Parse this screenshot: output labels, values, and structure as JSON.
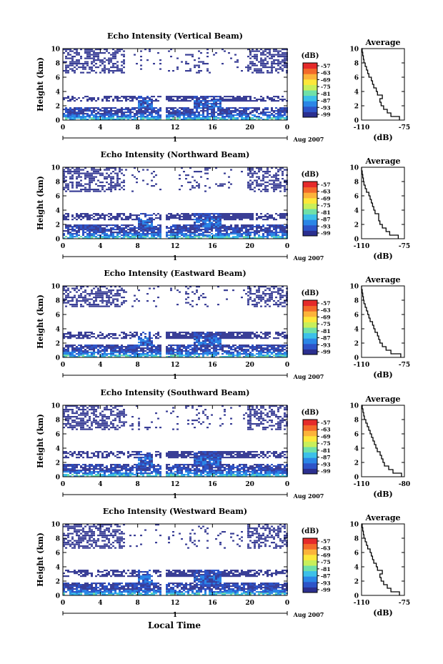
{
  "figure": {
    "xlabel": "Local Time",
    "date_label": "Aug 2007",
    "date_tick_label": "1",
    "colorbar_unit": "(dB)",
    "colorbar_ticks": [
      "-57",
      "-63",
      "-69",
      "-75",
      "-81",
      "-87",
      "-93",
      "-99"
    ],
    "colorbar_colors": [
      "#2b2f8f",
      "#2d54c8",
      "#2b86e6",
      "#3cc0e8",
      "#6fe0a8",
      "#c8ef5a",
      "#fde73a",
      "#fcb33a",
      "#f36a2a",
      "#e52a2a"
    ],
    "echo_color": "#3a3f96",
    "avg_title": "Average",
    "avg_xlabel": "(dB)",
    "avg_ylabel": "Height (km)"
  },
  "chart_data": [
    {
      "type": "heatmap",
      "title": "Echo Intensity (Vertical Beam)",
      "ylabel": "Height (km)",
      "xlabel": "Local Time",
      "x_ticks": [
        "0",
        "4",
        "8",
        "12",
        "16",
        "20",
        "0"
      ],
      "y_ticks": [
        "0",
        "2",
        "4",
        "6",
        "8",
        "10"
      ],
      "xlim": [
        0,
        24
      ],
      "ylim": [
        0,
        10
      ],
      "colorbar_range_db": [
        -99,
        -57
      ],
      "upper_layer_km": [
        6.5,
        10
      ],
      "mid_layer_km": [
        2.6,
        3.4
      ],
      "lower_layer_km": [
        0,
        1.6
      ],
      "strong_columns_hours": [
        [
          7.8,
          9.6
        ],
        [
          13.8,
          16.9
        ]
      ],
      "gap_hours": [
        10.4,
        11.0
      ],
      "average": {
        "title": "Average",
        "xlabel": "(dB)",
        "x_ticks": [
          "-110",
          "-75"
        ],
        "xlim": [
          -110,
          -75
        ],
        "y_ticks": [
          "0",
          "2",
          "4",
          "6",
          "8",
          "10"
        ],
        "profile_height_km": [
          0,
          0.5,
          1,
          1.5,
          2,
          2.5,
          3,
          3.5,
          4,
          4.5,
          5,
          5.5,
          6,
          6.5,
          7,
          7.5,
          8,
          8.5,
          9,
          9.5,
          10
        ],
        "profile_db": [
          -79,
          -86,
          -89,
          -92,
          -94,
          -95,
          -93,
          -97,
          -98,
          -100,
          -101,
          -102,
          -104,
          -105,
          -106,
          -107,
          -108,
          -108.5,
          -109,
          -109.5,
          -110
        ]
      }
    },
    {
      "type": "heatmap",
      "title": "Echo Intensity (Northward Beam)",
      "ylabel": "Height (km)",
      "xlabel": "Local Time",
      "x_ticks": [
        "0",
        "4",
        "8",
        "12",
        "16",
        "20",
        "0"
      ],
      "y_ticks": [
        "0",
        "2",
        "4",
        "6",
        "8",
        "10"
      ],
      "xlim": [
        0,
        24
      ],
      "ylim": [
        0,
        10
      ],
      "colorbar_range_db": [
        -99,
        -57
      ],
      "upper_layer_km": [
        6.5,
        10
      ],
      "mid_layer_km": [
        2.6,
        3.6
      ],
      "lower_layer_km": [
        0,
        1.8
      ],
      "strong_columns_hours": [
        [
          7.8,
          9.6
        ],
        [
          13.8,
          16.9
        ]
      ],
      "gap_hours": [
        10.4,
        11.0
      ],
      "average": {
        "title": "Average",
        "xlabel": "(dB)",
        "x_ticks": [
          "-110",
          "-75"
        ],
        "xlim": [
          -110,
          -75
        ],
        "y_ticks": [
          "0",
          "2",
          "4",
          "6",
          "8",
          "10"
        ],
        "profile_height_km": [
          0,
          0.5,
          1,
          1.5,
          2,
          2.5,
          3,
          3.5,
          4,
          4.5,
          5,
          5.5,
          6,
          6.5,
          7,
          7.5,
          8,
          8.5,
          9,
          9.5,
          10
        ],
        "profile_db": [
          -80,
          -87,
          -90,
          -93,
          -95,
          -96,
          -96,
          -99,
          -100,
          -101,
          -102,
          -103,
          -104,
          -106,
          -107,
          -108,
          -108.5,
          -109,
          -109.5,
          -110,
          -110
        ]
      }
    },
    {
      "type": "heatmap",
      "title": "Echo Intensity (Eastward Beam)",
      "ylabel": "Height (km)",
      "xlabel": "Local Time",
      "x_ticks": [
        "0",
        "4",
        "8",
        "12",
        "16",
        "20",
        "0"
      ],
      "y_ticks": [
        "0",
        "2",
        "4",
        "6",
        "8",
        "10"
      ],
      "xlim": [
        0,
        24
      ],
      "ylim": [
        0,
        10
      ],
      "colorbar_range_db": [
        -99,
        -57
      ],
      "upper_layer_km": [
        7,
        10
      ],
      "mid_layer_km": [
        2.6,
        3.6
      ],
      "lower_layer_km": [
        0,
        1.6
      ],
      "strong_columns_hours": [
        [
          7.8,
          9.6
        ],
        [
          13.8,
          16.9
        ]
      ],
      "gap_hours": [
        10.4,
        11.0
      ],
      "average": {
        "title": "Average",
        "xlabel": "(dB)",
        "x_ticks": [
          "-110",
          "-75"
        ],
        "xlim": [
          -110,
          -75
        ],
        "y_ticks": [
          "0",
          "2",
          "4",
          "6",
          "8",
          "10"
        ],
        "profile_height_km": [
          0,
          0.5,
          1,
          1.5,
          2,
          2.5,
          3,
          3.5,
          4,
          4.5,
          5,
          5.5,
          6,
          6.5,
          7,
          7.5,
          8,
          8.5,
          9,
          9.5,
          10
        ],
        "profile_db": [
          -78,
          -86,
          -90,
          -93,
          -95,
          -96,
          -97,
          -99,
          -100,
          -101,
          -103,
          -104,
          -105,
          -106,
          -107,
          -108,
          -108.5,
          -109,
          -109.5,
          -110,
          -110
        ]
      }
    },
    {
      "type": "heatmap",
      "title": "Echo Intensity (Southward Beam)",
      "ylabel": "Height (km)",
      "xlabel": "Local Time",
      "x_ticks": [
        "0",
        "4",
        "8",
        "12",
        "16",
        "20",
        "0"
      ],
      "y_ticks": [
        "0",
        "2",
        "4",
        "6",
        "8",
        "10"
      ],
      "xlim": [
        0,
        24
      ],
      "ylim": [
        0,
        10
      ],
      "colorbar_range_db": [
        -99,
        -57
      ],
      "upper_layer_km": [
        6.5,
        10
      ],
      "mid_layer_km": [
        2.6,
        3.6
      ],
      "lower_layer_km": [
        0,
        1.6
      ],
      "strong_columns_hours": [
        [
          7.8,
          9.6
        ],
        [
          13.8,
          16.9
        ]
      ],
      "gap_hours": [
        10.4,
        11.0
      ],
      "average": {
        "title": "Average",
        "xlabel": "(dB)",
        "x_ticks": [
          "-110",
          "-80"
        ],
        "xlim": [
          -110,
          -80
        ],
        "y_ticks": [
          "0",
          "2",
          "4",
          "6",
          "8",
          "10"
        ],
        "profile_height_km": [
          0,
          0.5,
          1,
          1.5,
          2,
          2.5,
          3,
          3.5,
          4,
          4.5,
          5,
          5.5,
          6,
          6.5,
          7,
          7.5,
          8,
          8.5,
          9,
          9.5,
          10
        ],
        "profile_db": [
          -82,
          -88,
          -91,
          -94,
          -95,
          -96,
          -97,
          -99,
          -100,
          -101,
          -102,
          -103,
          -104,
          -105,
          -106,
          -107,
          -108,
          -108.5,
          -109,
          -109.5,
          -110
        ]
      }
    },
    {
      "type": "heatmap",
      "title": "Echo Intensity (Westward Beam)",
      "ylabel": "Height (km)",
      "xlabel": "Local Time",
      "x_ticks": [
        "0",
        "4",
        "8",
        "12",
        "16",
        "20",
        "0"
      ],
      "y_ticks": [
        "0",
        "2",
        "4",
        "6",
        "8",
        "10"
      ],
      "xlim": [
        0,
        24
      ],
      "ylim": [
        0,
        10
      ],
      "colorbar_range_db": [
        -99,
        -57
      ],
      "upper_layer_km": [
        6.5,
        10
      ],
      "mid_layer_km": [
        2.6,
        3.6
      ],
      "lower_layer_km": [
        0,
        1.6
      ],
      "strong_columns_hours": [
        [
          7.8,
          9.6
        ],
        [
          13.8,
          16.9
        ]
      ],
      "gap_hours": [
        10.4,
        11.0
      ],
      "average": {
        "title": "Average",
        "xlabel": "(dB)",
        "x_ticks": [
          "-110",
          "-75"
        ],
        "xlim": [
          -110,
          -75
        ],
        "y_ticks": [
          "0",
          "2",
          "4",
          "6",
          "8",
          "10"
        ],
        "profile_height_km": [
          0,
          0.5,
          1,
          1.5,
          2,
          2.5,
          3,
          3.5,
          4,
          4.5,
          5,
          5.5,
          6,
          6.5,
          7,
          7.5,
          8,
          8.5,
          9,
          9.5,
          10
        ],
        "profile_db": [
          -79,
          -86,
          -89,
          -92,
          -94,
          -95,
          -93,
          -97,
          -98,
          -100,
          -101,
          -102,
          -103,
          -105,
          -106,
          -107,
          -108,
          -108.5,
          -109,
          -109.5,
          -110
        ]
      }
    }
  ]
}
